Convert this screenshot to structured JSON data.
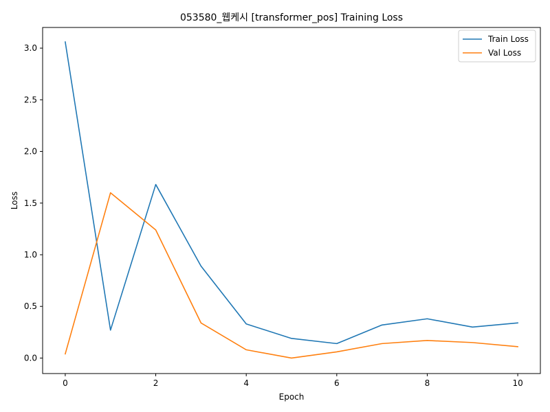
{
  "chart_data": {
    "type": "line",
    "title": "053580_웹케시 [transformer_pos] Training Loss",
    "xlabel": "Epoch",
    "ylabel": "Loss",
    "x": [
      0,
      1,
      2,
      3,
      4,
      5,
      6,
      7,
      8,
      9,
      10
    ],
    "xlim": [
      -0.5,
      10.5
    ],
    "ylim": [
      -0.15,
      3.2
    ],
    "xticks": [
      0,
      2,
      4,
      6,
      8,
      10
    ],
    "yticks": [
      0.0,
      0.5,
      1.0,
      1.5,
      2.0,
      2.5,
      3.0
    ],
    "xtick_labels": [
      "0",
      "2",
      "4",
      "6",
      "8",
      "10"
    ],
    "ytick_labels": [
      "0.0",
      "0.5",
      "1.0",
      "1.5",
      "2.0",
      "2.5",
      "3.0"
    ],
    "grid": false,
    "legend_position": "top-right",
    "series": [
      {
        "name": "Train Loss",
        "color": "#1f77b4",
        "values": [
          3.06,
          0.27,
          1.68,
          0.89,
          0.33,
          0.19,
          0.14,
          0.32,
          0.38,
          0.3,
          0.34
        ]
      },
      {
        "name": "Val Loss",
        "color": "#ff7f0e",
        "values": [
          0.04,
          1.6,
          1.24,
          0.34,
          0.08,
          0.0,
          0.06,
          0.14,
          0.17,
          0.15,
          0.11
        ]
      }
    ]
  }
}
